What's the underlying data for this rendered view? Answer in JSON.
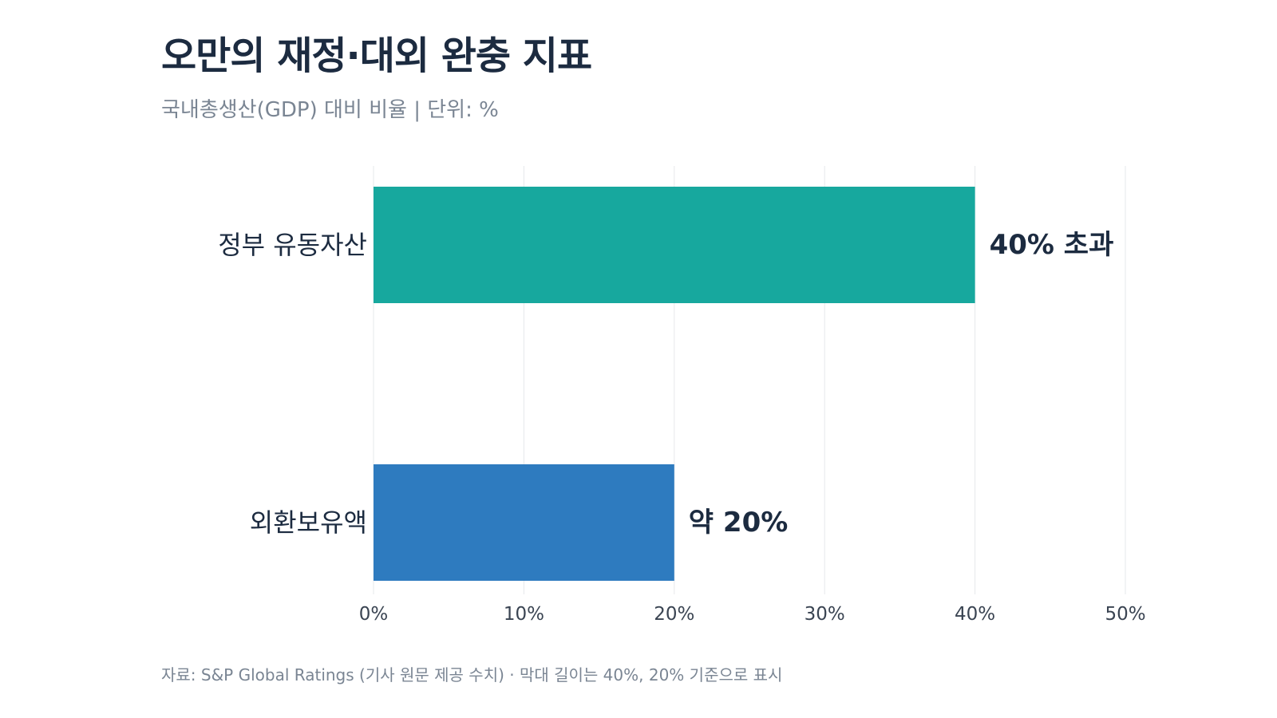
{
  "header": {
    "title": "오만의 재정·대외 완충 지표",
    "subtitle": "국내총생산(GDP) 대비 비율 | 단위: %"
  },
  "footer": {
    "source": "자료: S&P Global Ratings (기사 원문 제공 수치) · 막대 길이는 40%, 20% 기준으로 표시"
  },
  "chart_data": {
    "type": "bar",
    "orientation": "horizontal",
    "title": "오만의 재정·대외 완충 지표",
    "subtitle": "국내총생산(GDP) 대비 비율 | 단위: %",
    "categories": [
      "정부 유동자산",
      "외환보유액"
    ],
    "values": [
      40,
      20
    ],
    "data_labels": [
      "40% 초과",
      "약 20%"
    ],
    "colors": [
      "#17a89e",
      "#2e7bbf"
    ],
    "xlim": [
      0,
      50
    ],
    "xticks": [
      0,
      10,
      20,
      30,
      40,
      50
    ],
    "xtick_labels": [
      "0%",
      "10%",
      "20%",
      "30%",
      "40%",
      "50%"
    ],
    "grid": true,
    "legend": "none"
  }
}
